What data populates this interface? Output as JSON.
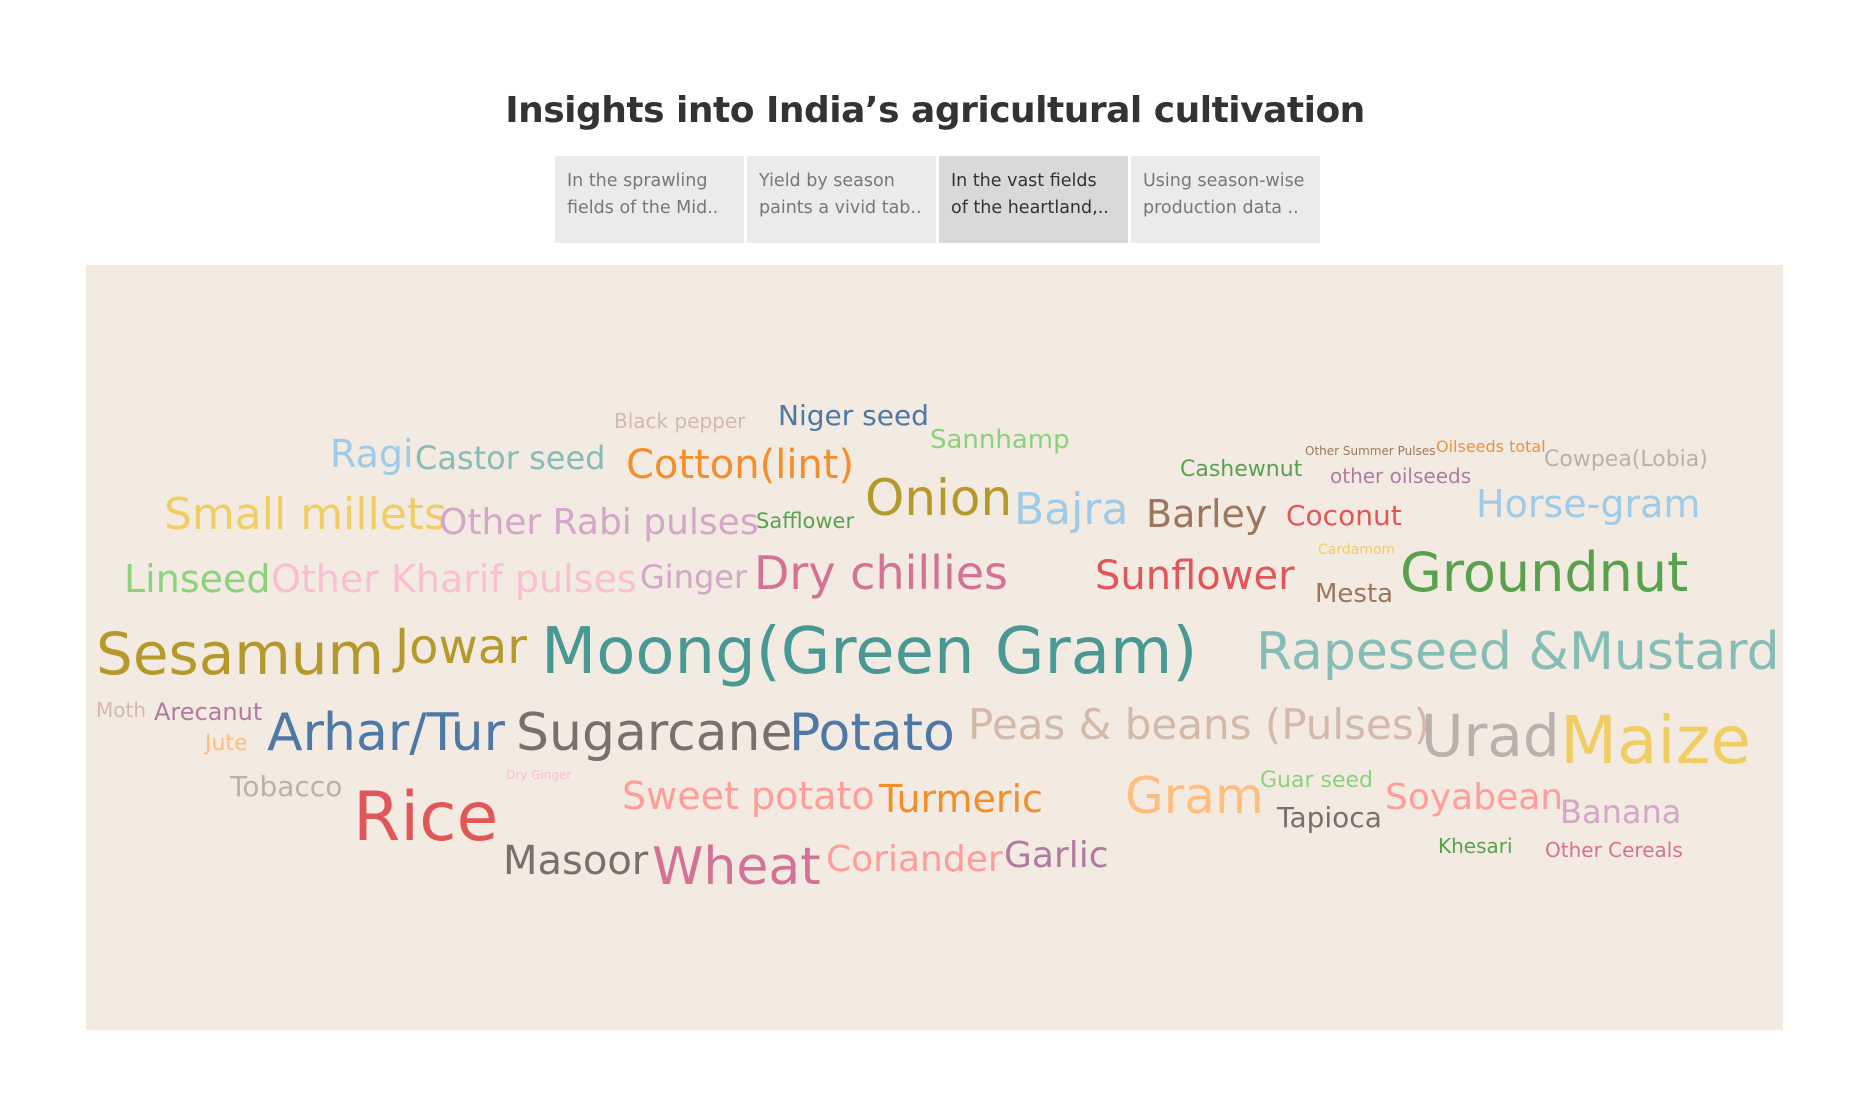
{
  "title": "Insights into India’s agricultural cultivation",
  "tabs": [
    {
      "line1": "In the sprawling",
      "line2": "fields of the Mid..",
      "active": false
    },
    {
      "line1": "Yield by season",
      "line2": "paints a vivid tab..",
      "active": false
    },
    {
      "line1": "In the vast fields",
      "line2": "of the heartland,..",
      "active": true
    },
    {
      "line1": "Using season-wise",
      "line2": "production data ..",
      "active": false
    }
  ],
  "words": [
    {
      "text": "Black pepper",
      "color": "#d4b9a8"
    },
    {
      "text": "Niger seed",
      "color": "#4e79a7"
    },
    {
      "text": "Sannhamp",
      "color": "#8cd17d"
    },
    {
      "text": "Ragi",
      "color": "#a0cbe8"
    },
    {
      "text": "Castor seed",
      "color": "#86bcb6"
    },
    {
      "text": "Cotton(lint)",
      "color": "#f28e2b"
    },
    {
      "text": "Cashewnut",
      "color": "#59a14f"
    },
    {
      "text": "Other Summer Pulses",
      "color": "#9d7660"
    },
    {
      "text": "Oilseeds total",
      "color": "#e49444"
    },
    {
      "text": "Cowpea(Lobia)",
      "color": "#bab0ac"
    },
    {
      "text": "other oilseeds",
      "color": "#b07aa1"
    },
    {
      "text": "Small millets",
      "color": "#f1ce63"
    },
    {
      "text": "Other Rabi pulses",
      "color": "#d4a6c8"
    },
    {
      "text": "Safflower",
      "color": "#59a14f"
    },
    {
      "text": "Onion",
      "color": "#b6992d"
    },
    {
      "text": "Bajra",
      "color": "#a0cbe8"
    },
    {
      "text": "Barley",
      "color": "#9d7660"
    },
    {
      "text": "Coconut",
      "color": "#e15759"
    },
    {
      "text": "Horse-gram",
      "color": "#a0cbe8"
    },
    {
      "text": "Cardamom",
      "color": "#f1ce63"
    },
    {
      "text": "Linseed",
      "color": "#8cd17d"
    },
    {
      "text": "Other Kharif pulses",
      "color": "#fabfd2"
    },
    {
      "text": "Ginger",
      "color": "#d4a6c8"
    },
    {
      "text": "Dry chillies",
      "color": "#d37295"
    },
    {
      "text": "Sunflower",
      "color": "#e15759"
    },
    {
      "text": "Mesta",
      "color": "#9d7660"
    },
    {
      "text": "Groundnut",
      "color": "#59a14f"
    },
    {
      "text": "Sesamum",
      "color": "#b6992d"
    },
    {
      "text": "Jowar",
      "color": "#b6992d"
    },
    {
      "text": "Moong(Green Gram)",
      "color": "#499894"
    },
    {
      "text": "Rapeseed &Mustard",
      "color": "#86bcb6"
    },
    {
      "text": "Moth",
      "color": "#d4b9a8"
    },
    {
      "text": "Arecanut",
      "color": "#b07aa1"
    },
    {
      "text": "Jute",
      "color": "#ffbe7d"
    },
    {
      "text": "Arhar/Tur",
      "color": "#4e79a7"
    },
    {
      "text": "Sugarcane",
      "color": "#79706e"
    },
    {
      "text": "Potato",
      "color": "#4e79a7"
    },
    {
      "text": "Peas & beans (Pulses)",
      "color": "#d4b9a8"
    },
    {
      "text": "Urad",
      "color": "#bab0ac"
    },
    {
      "text": "Maize",
      "color": "#f1ce63"
    },
    {
      "text": "Tobacco",
      "color": "#bab0ac"
    },
    {
      "text": "Dry Ginger",
      "color": "#fabfd2"
    },
    {
      "text": "Rice",
      "color": "#e15759"
    },
    {
      "text": "Sweet potato",
      "color": "#ff9d9a"
    },
    {
      "text": "Turmeric",
      "color": "#f28e2b"
    },
    {
      "text": "Gram",
      "color": "#ffbe7d"
    },
    {
      "text": "Guar seed",
      "color": "#8cd17d"
    },
    {
      "text": "Soyabean",
      "color": "#ff9d9a"
    },
    {
      "text": "Banana",
      "color": "#d4a6c8"
    },
    {
      "text": "Tapioca",
      "color": "#79706e"
    },
    {
      "text": "Masoor",
      "color": "#79706e"
    },
    {
      "text": "Wheat",
      "color": "#d37295"
    },
    {
      "text": "Coriander",
      "color": "#ff9d9a"
    },
    {
      "text": "Garlic",
      "color": "#b07aa1"
    },
    {
      "text": "Khesari",
      "color": "#59a14f"
    },
    {
      "text": "Other Cereals",
      "color": "#d37295"
    }
  ]
}
